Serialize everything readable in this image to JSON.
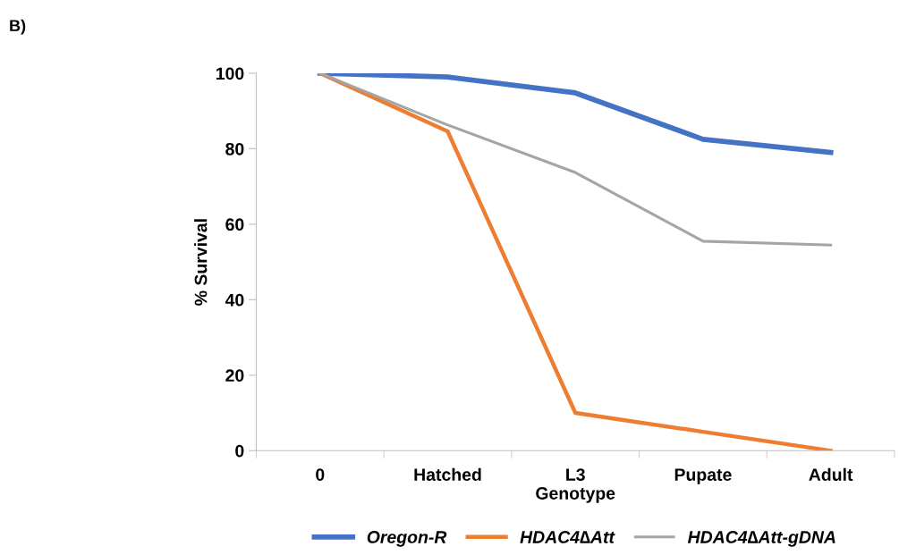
{
  "chart_data": {
    "type": "line",
    "xlabel": "Genotype",
    "ylabel": "% Survival",
    "annotations": [
      "B)"
    ],
    "categories": [
      "0",
      "Hatched",
      "L3",
      "Pupate",
      "Adult"
    ],
    "series": [
      {
        "name": "Oregon-R",
        "color": "#4472c4",
        "values": [
          100,
          99,
          94.8,
          82.5,
          79
        ]
      },
      {
        "name": "HDAC4∆Att",
        "color": "#ed7d31",
        "values": [
          100,
          84.6,
          10,
          5,
          0
        ]
      },
      {
        "name": "HDAC4∆Att-gDNA",
        "color": "#a5a5a5",
        "values": [
          100,
          86.3,
          73.7,
          55.5,
          54.5
        ]
      }
    ],
    "ylim": [
      0,
      100
    ],
    "yticks": [
      0,
      20,
      40,
      60,
      80,
      100
    ],
    "grid": false,
    "legend": "bottom",
    "marker": "none",
    "line_style": "solid"
  }
}
